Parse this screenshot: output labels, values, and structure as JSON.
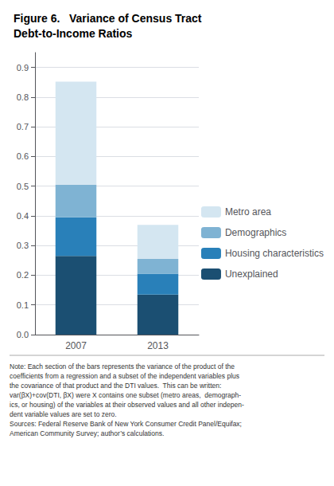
{
  "chart_data": {
    "type": "bar",
    "title": "Figure 6.   Variance of Census Tract\nDebt-to-Income Ratios",
    "categories": [
      "2007",
      "2013"
    ],
    "series": [
      {
        "name": "Unexplained",
        "color": "#1b4f72",
        "values": [
          0.265,
          0.135
        ]
      },
      {
        "name": "Housing characteristics",
        "color": "#2980b9",
        "values": [
          0.13,
          0.07
        ]
      },
      {
        "name": "Demographics",
        "color": "#7fb3d3",
        "values": [
          0.11,
          0.05
        ]
      },
      {
        "name": "Metro area",
        "color": "#d4e6f1",
        "values": [
          0.347,
          0.115
        ]
      }
    ],
    "stacked": true,
    "ylim": [
      0,
      0.95
    ],
    "yticks": [
      {
        "value": 0,
        "label": "0.0"
      },
      0.1,
      0.2,
      0.3,
      0.4,
      0.5,
      0.6,
      0.7,
      0.8,
      0.9
    ],
    "grid": true,
    "legend": "right",
    "note": "Note: Each section of the bars represents the variance of the product of the\ncoefficients from a regression and a subset of the independent variables plus\nthe covariance of that product and the DTI values.  This can be written:\nvar(βX)+cov(DTI, βX) were X contains one subset (metro areas,  demograph-\nics, or housing) of the variables at their observed values and all other indepen-\ndent variable values are set to zero.\nSources: Federal Reserve Bank of New York Consumer Credit Panel/Equifax;\nAmerican Community Survey; author’s calculations."
  }
}
